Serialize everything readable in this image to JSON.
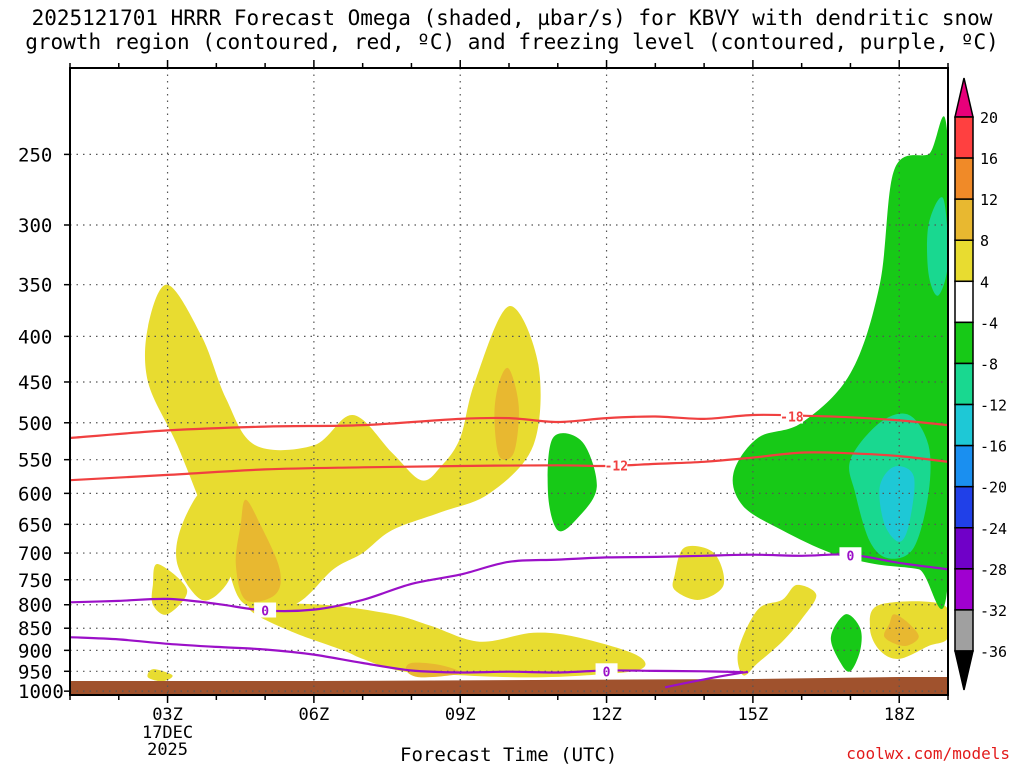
{
  "title_line1": "2025121701 HRRR Forecast Omega (shaded, µbar/s) for KBVY with dendritic snow",
  "title_line2": "growth region (contoured, red, ºC) and freezing level (contoured, purple, ºC)",
  "credit": "coolwx.com/models",
  "chart_data": {
    "type": "heatmap",
    "xlabel": "Forecast Time (UTC)",
    "ylabel": "",
    "x_ticks": [
      {
        "hour": 3,
        "label": "03Z",
        "sublabels": [
          "17DEC",
          "2025"
        ]
      },
      {
        "hour": 6,
        "label": "06Z"
      },
      {
        "hour": 9,
        "label": "09Z"
      },
      {
        "hour": 12,
        "label": "12Z"
      },
      {
        "hour": 15,
        "label": "15Z"
      },
      {
        "hour": 18,
        "label": "18Z"
      }
    ],
    "xlim": [
      1,
      19
    ],
    "y_ticks": [
      250,
      300,
      350,
      400,
      450,
      500,
      550,
      600,
      650,
      700,
      750,
      800,
      850,
      900,
      950,
      1000
    ],
    "ylim": [
      1010,
      200
    ],
    "y_scale": "log-pressure",
    "grid": true,
    "colorbar": {
      "ticks": [
        "20",
        "16",
        "12",
        "8",
        "4",
        "-4",
        "-8",
        "-12",
        "-16",
        "-20",
        "-24",
        "-28",
        "-32",
        "-36"
      ],
      "colors": [
        "#e8007a",
        "#ff4040",
        "#f08a28",
        "#e8b830",
        "#e8dc30",
        "#ffffff",
        "#17c917",
        "#19d890",
        "#1ec8d6",
        "#1a8ff0",
        "#2040e8",
        "#7000c8",
        "#a000d0",
        "#a0a0a0",
        "#000000"
      ]
    },
    "shaded_regions": [
      {
        "label": "4 to 8",
        "color": "#e8dc30",
        "polygon": [
          [
            3.0,
            350
          ],
          [
            3.7,
            400
          ],
          [
            4.2,
            470
          ],
          [
            4.8,
            530
          ],
          [
            6.0,
            530
          ],
          [
            6.8,
            490
          ],
          [
            7.6,
            540
          ],
          [
            8.2,
            580
          ],
          [
            8.6,
            560
          ],
          [
            9.0,
            520
          ],
          [
            9.3,
            450
          ],
          [
            10.0,
            370
          ],
          [
            10.6,
            430
          ],
          [
            10.5,
            530
          ],
          [
            9.6,
            600
          ],
          [
            8.6,
            630
          ],
          [
            7.6,
            660
          ],
          [
            7.0,
            700
          ],
          [
            6.4,
            730
          ],
          [
            5.6,
            800
          ],
          [
            4.6,
            800
          ],
          [
            4.2,
            720
          ],
          [
            3.8,
            640
          ],
          [
            3.2,
            530
          ],
          [
            2.6,
            450
          ],
          [
            2.6,
            390
          ]
        ]
      },
      {
        "label": "4 to 8",
        "color": "#e8dc30",
        "polygon": [
          [
            4.8,
            800
          ],
          [
            6.2,
            800
          ],
          [
            7.6,
            820
          ],
          [
            8.4,
            845
          ],
          [
            9.4,
            880
          ],
          [
            10.5,
            860
          ],
          [
            11.4,
            870
          ],
          [
            12.6,
            910
          ],
          [
            12.7,
            945
          ],
          [
            11.6,
            960
          ],
          [
            10.4,
            965
          ],
          [
            9.0,
            960
          ],
          [
            7.8,
            950
          ],
          [
            7.0,
            920
          ],
          [
            6.6,
            900
          ],
          [
            5.6,
            860
          ],
          [
            4.8,
            820
          ]
        ]
      },
      {
        "label": "4 to 8",
        "color": "#e8dc30",
        "polygon": [
          [
            3.8,
            590
          ],
          [
            4.2,
            640
          ],
          [
            4.4,
            700
          ],
          [
            4.2,
            760
          ],
          [
            3.7,
            790
          ],
          [
            3.2,
            720
          ],
          [
            3.3,
            650
          ]
        ]
      },
      {
        "label": "4 to 8",
        "color": "#e8dc30",
        "polygon": [
          [
            2.8,
            720
          ],
          [
            3.4,
            770
          ],
          [
            3.0,
            820
          ],
          [
            2.7,
            800
          ],
          [
            2.7,
            760
          ]
        ]
      },
      {
        "label": "4 to 8",
        "color": "#e8dc30",
        "polygon": [
          [
            2.7,
            945
          ],
          [
            3.1,
            960
          ],
          [
            2.9,
            975
          ],
          [
            2.6,
            965
          ]
        ]
      },
      {
        "label": "4 to 8",
        "color": "#e8dc30",
        "polygon": [
          [
            13.6,
            690
          ],
          [
            14.2,
            700
          ],
          [
            14.4,
            760
          ],
          [
            13.9,
            790
          ],
          [
            13.4,
            770
          ],
          [
            13.4,
            740
          ]
        ]
      },
      {
        "label": "4 to 8",
        "color": "#e8dc30",
        "polygon": [
          [
            15.9,
            760
          ],
          [
            16.3,
            780
          ],
          [
            16.0,
            830
          ],
          [
            15.6,
            880
          ],
          [
            15.1,
            930
          ],
          [
            14.8,
            960
          ],
          [
            14.7,
            900
          ],
          [
            15.1,
            810
          ],
          [
            15.6,
            790
          ]
        ]
      },
      {
        "label": "4 to 8",
        "color": "#e8dc30",
        "polygon": [
          [
            17.6,
            800
          ],
          [
            18.9,
            800
          ],
          [
            19.0,
            870
          ],
          [
            18.6,
            890
          ],
          [
            18.0,
            920
          ],
          [
            17.6,
            900
          ],
          [
            17.4,
            850
          ]
        ]
      },
      {
        "label": "8 to 12",
        "color": "#e8b830",
        "polygon": [
          [
            4.6,
            610
          ],
          [
            4.9,
            650
          ],
          [
            5.3,
            730
          ],
          [
            5.2,
            780
          ],
          [
            4.6,
            790
          ],
          [
            4.4,
            720
          ],
          [
            4.5,
            650
          ]
        ]
      },
      {
        "label": "8 to 12",
        "color": "#e8b830",
        "polygon": [
          [
            10.0,
            435
          ],
          [
            10.2,
            480
          ],
          [
            10.1,
            540
          ],
          [
            9.8,
            545
          ],
          [
            9.7,
            490
          ],
          [
            9.8,
            450
          ]
        ]
      },
      {
        "label": "8 to 12",
        "color": "#e8b830",
        "polygon": [
          [
            17.9,
            820
          ],
          [
            18.2,
            840
          ],
          [
            18.4,
            870
          ],
          [
            18.1,
            890
          ],
          [
            17.7,
            870
          ],
          [
            17.8,
            840
          ]
        ]
      },
      {
        "label": "8 to 12",
        "color": "#e8b830",
        "polygon": [
          [
            8.0,
            930
          ],
          [
            8.6,
            935
          ],
          [
            9.0,
            955
          ],
          [
            8.2,
            965
          ],
          [
            7.9,
            950
          ]
        ]
      },
      {
        "label": "-4 to -8",
        "color": "#17c917",
        "polygon": [
          [
            19.0,
            245
          ],
          [
            19.0,
            750
          ],
          [
            18.4,
            730
          ],
          [
            17.5,
            720
          ],
          [
            16.6,
            700
          ],
          [
            15.6,
            660
          ],
          [
            14.8,
            620
          ],
          [
            14.6,
            570
          ],
          [
            15.1,
            520
          ],
          [
            16.0,
            500
          ],
          [
            17.0,
            440
          ],
          [
            17.6,
            350
          ],
          [
            17.9,
            260
          ],
          [
            18.6,
            250
          ]
        ]
      },
      {
        "label": "-4 to -8",
        "color": "#17c917",
        "polygon": [
          [
            10.9,
            520
          ],
          [
            11.5,
            525
          ],
          [
            11.8,
            590
          ],
          [
            11.4,
            640
          ],
          [
            11.0,
            660
          ],
          [
            10.8,
            600
          ]
        ]
      },
      {
        "label": "-4 to -8",
        "color": "#17c917",
        "polygon": [
          [
            16.9,
            820
          ],
          [
            17.2,
            850
          ],
          [
            17.2,
            900
          ],
          [
            17.0,
            950
          ],
          [
            16.8,
            930
          ],
          [
            16.6,
            870
          ]
        ]
      },
      {
        "label": "-8 to -12",
        "color": "#19d890",
        "polygon": [
          [
            18.9,
            280
          ],
          [
            19.0,
            330
          ],
          [
            18.8,
            360
          ],
          [
            18.6,
            340
          ],
          [
            18.6,
            300
          ]
        ]
      },
      {
        "label": "-8 to -12",
        "color": "#19d890",
        "polygon": [
          [
            17.6,
            500
          ],
          [
            18.2,
            490
          ],
          [
            18.6,
            530
          ],
          [
            18.6,
            600
          ],
          [
            18.3,
            690
          ],
          [
            17.8,
            710
          ],
          [
            17.4,
            680
          ],
          [
            17.1,
            600
          ],
          [
            17.0,
            550
          ]
        ]
      },
      {
        "label": "-12 to -16",
        "color": "#1ec8d6",
        "polygon": [
          [
            17.9,
            560
          ],
          [
            18.3,
            575
          ],
          [
            18.2,
            650
          ],
          [
            18.0,
            680
          ],
          [
            17.7,
            650
          ],
          [
            17.6,
            590
          ]
        ]
      }
    ],
    "contours": [
      {
        "label": "-18",
        "color": "#f04040",
        "kind": "dendritic snow growth",
        "points": [
          [
            1,
            520
          ],
          [
            3,
            510
          ],
          [
            5,
            505
          ],
          [
            7,
            503
          ],
          [
            9,
            495
          ],
          [
            10,
            494
          ],
          [
            11,
            499
          ],
          [
            12,
            494
          ],
          [
            13,
            492
          ],
          [
            14,
            495
          ],
          [
            15,
            490
          ],
          [
            16,
            491
          ],
          [
            17,
            493
          ],
          [
            18,
            497
          ],
          [
            19,
            503
          ]
        ]
      },
      {
        "label": "-12",
        "color": "#f04040",
        "kind": "dendritic snow growth",
        "points": [
          [
            1,
            580
          ],
          [
            3,
            572
          ],
          [
            5,
            564
          ],
          [
            7,
            561
          ],
          [
            9,
            559
          ],
          [
            11,
            558
          ],
          [
            12,
            559
          ],
          [
            13,
            556
          ],
          [
            14,
            553
          ],
          [
            15,
            547
          ],
          [
            16,
            540
          ],
          [
            17,
            541
          ],
          [
            18,
            545
          ],
          [
            19,
            553
          ]
        ]
      },
      {
        "label": "0",
        "color": "#9b10c8",
        "kind": "freezing level",
        "points": [
          [
            1,
            795
          ],
          [
            2,
            792
          ],
          [
            3,
            788
          ],
          [
            4,
            798
          ],
          [
            5,
            812
          ],
          [
            6,
            810
          ],
          [
            7,
            790
          ],
          [
            8,
            758
          ],
          [
            9,
            740
          ],
          [
            10,
            716
          ],
          [
            11,
            712
          ],
          [
            12,
            708
          ],
          [
            13,
            707
          ],
          [
            14,
            705
          ],
          [
            15,
            703
          ],
          [
            16,
            705
          ],
          [
            17,
            703
          ],
          [
            18,
            718
          ],
          [
            19,
            730
          ]
        ]
      },
      {
        "label": "0",
        "color": "#9b10c8",
        "kind": "freezing level",
        "points": [
          [
            1,
            870
          ],
          [
            2,
            875
          ],
          [
            3,
            885
          ],
          [
            4,
            892
          ],
          [
            5,
            898
          ],
          [
            6,
            910
          ],
          [
            7,
            930
          ],
          [
            8,
            948
          ],
          [
            9,
            953
          ],
          [
            10,
            951
          ],
          [
            11,
            953
          ],
          [
            12,
            948
          ],
          [
            13,
            949
          ],
          [
            14,
            950
          ],
          [
            14.8,
            952
          ]
        ]
      },
      {
        "label": "",
        "color": "#9b10c8",
        "kind": "freezing level",
        "points": [
          [
            13.2,
            990
          ],
          [
            14.0,
            970
          ],
          [
            14.7,
            955
          ],
          [
            14.9,
            952
          ]
        ]
      }
    ],
    "terrain": {
      "label": "surface",
      "color": "#a0522d"
    }
  }
}
